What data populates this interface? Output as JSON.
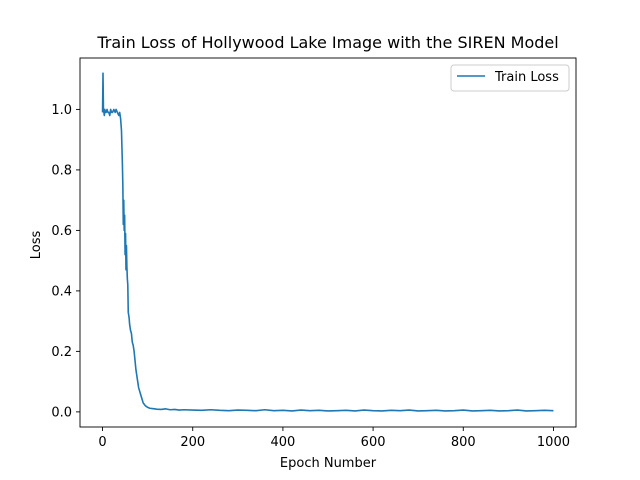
{
  "chart_data": {
    "type": "line",
    "title": "Train Loss of Hollywood Lake Image with the SIREN Model",
    "xlabel": "Epoch Number",
    "ylabel": "Loss",
    "xlim": [
      -50,
      1050
    ],
    "ylim": [
      -0.05,
      1.17
    ],
    "xticks": [
      0,
      200,
      400,
      600,
      800,
      1000
    ],
    "yticks": [
      0.0,
      0.2,
      0.4,
      0.6,
      0.8,
      1.0
    ],
    "xtick_labels": [
      "0",
      "200",
      "400",
      "600",
      "800",
      "1000"
    ],
    "ytick_labels": [
      "0.0",
      "0.2",
      "0.4",
      "0.6",
      "0.8",
      "1.0"
    ],
    "grid": false,
    "legend_position": "top-right",
    "series_color": "#1f77b4",
    "series": [
      {
        "name": "Train Loss",
        "x": [
          0,
          1,
          2,
          3,
          4,
          5,
          6,
          8,
          10,
          12,
          14,
          16,
          18,
          20,
          22,
          25,
          28,
          30,
          33,
          36,
          38,
          40,
          42,
          44,
          45,
          46,
          47,
          48,
          49,
          50,
          51,
          52,
          53,
          54,
          55,
          56,
          57,
          58,
          59,
          60,
          62,
          64,
          66,
          68,
          70,
          72,
          74,
          76,
          78,
          80,
          82,
          84,
          86,
          88,
          90,
          92,
          95,
          100,
          105,
          110,
          115,
          120,
          130,
          140,
          150,
          160,
          170,
          180,
          200,
          220,
          240,
          260,
          280,
          300,
          320,
          340,
          360,
          380,
          400,
          420,
          440,
          460,
          480,
          500,
          520,
          540,
          560,
          580,
          600,
          620,
          640,
          660,
          680,
          700,
          720,
          740,
          760,
          780,
          800,
          820,
          840,
          860,
          880,
          900,
          920,
          940,
          960,
          980,
          1000
        ],
        "y": [
          0.99,
          1.12,
          1.0,
          0.99,
          0.98,
          1.0,
          0.99,
          0.99,
          1.0,
          0.99,
          0.99,
          0.98,
          1.0,
          0.99,
          0.99,
          1.0,
          0.99,
          1.0,
          0.99,
          0.98,
          0.99,
          0.97,
          0.93,
          0.82,
          0.75,
          0.62,
          0.7,
          0.6,
          0.65,
          0.52,
          0.59,
          0.47,
          0.55,
          0.48,
          0.44,
          0.42,
          0.33,
          0.32,
          0.31,
          0.29,
          0.27,
          0.26,
          0.23,
          0.22,
          0.2,
          0.17,
          0.14,
          0.12,
          0.1,
          0.08,
          0.07,
          0.06,
          0.05,
          0.04,
          0.03,
          0.026,
          0.02,
          0.015,
          0.012,
          0.011,
          0.01,
          0.009,
          0.008,
          0.01,
          0.007,
          0.008,
          0.006,
          0.007,
          0.006,
          0.005,
          0.007,
          0.005,
          0.004,
          0.006,
          0.005,
          0.004,
          0.007,
          0.004,
          0.005,
          0.003,
          0.006,
          0.004,
          0.005,
          0.003,
          0.004,
          0.005,
          0.003,
          0.006,
          0.004,
          0.003,
          0.005,
          0.004,
          0.006,
          0.003,
          0.004,
          0.005,
          0.003,
          0.004,
          0.006,
          0.003,
          0.004,
          0.005,
          0.003,
          0.004,
          0.006,
          0.003,
          0.004,
          0.005,
          0.004
        ]
      }
    ]
  }
}
